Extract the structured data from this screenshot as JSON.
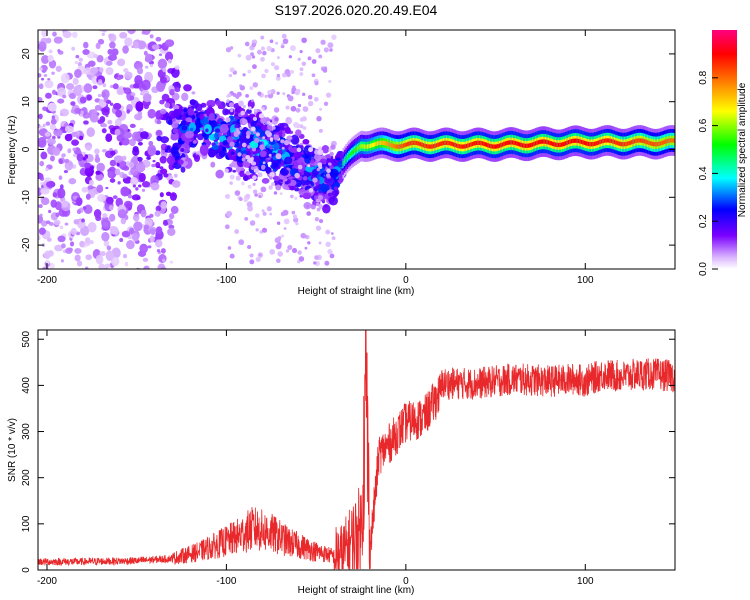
{
  "title": "S197.2026.020.20.49.E04",
  "chart_data": [
    {
      "type": "heatmap",
      "xlabel": "Height of straight line (km)",
      "ylabel": "Frequency (Hz)",
      "xlim": [
        -205,
        150
      ],
      "ylim": [
        -25,
        25
      ],
      "xticks": [
        -200,
        -100,
        0,
        100
      ],
      "yticks": [
        -20,
        -10,
        0,
        10,
        20
      ],
      "colorbar": {
        "label": "Normalized spectral amplitude",
        "ticks": [
          0.0,
          0.2,
          0.4,
          0.6,
          0.8
        ],
        "colors": [
          "#ffffff",
          "#d9b3ff",
          "#7a00ff",
          "#0000ff",
          "#00ffff",
          "#00ff00",
          "#ffff00",
          "#ff8000",
          "#ff0000",
          "#ff0080"
        ]
      },
      "description_points": [
        {
          "x": -200,
          "f_center": 0,
          "f_spread": 24,
          "amp": 0.12
        },
        {
          "x": -140,
          "f_center": 0,
          "f_spread": 24,
          "amp": 0.15
        },
        {
          "x": -120,
          "f_center": 5,
          "f_spread": 5,
          "amp": 0.3
        },
        {
          "x": -100,
          "f_center": 3,
          "f_spread": 6,
          "amp": 0.35
        },
        {
          "x": -80,
          "f_center": 1,
          "f_spread": 6,
          "amp": 0.35
        },
        {
          "x": -60,
          "f_center": -3,
          "f_spread": 6,
          "amp": 0.3
        },
        {
          "x": -40,
          "f_center": -7,
          "f_spread": 5,
          "amp": 0.3
        },
        {
          "x": -35,
          "f_center": -3,
          "f_spread": 2,
          "amp": 0.45
        },
        {
          "x": -25,
          "f_center": 1,
          "f_spread": 1,
          "amp": 0.6
        },
        {
          "x": 0,
          "f_center": 1,
          "f_spread": 1,
          "amp": 0.85
        },
        {
          "x": 50,
          "f_center": 1,
          "f_spread": 1,
          "amp": 0.9
        },
        {
          "x": 100,
          "f_center": 1.5,
          "f_spread": 1,
          "amp": 0.9
        },
        {
          "x": 150,
          "f_center": 1.5,
          "f_spread": 1,
          "amp": 0.8
        }
      ]
    },
    {
      "type": "line",
      "xlabel": "Height of straight line (km)",
      "ylabel": "SNR (10 * v/v)",
      "xlim": [
        -205,
        150
      ],
      "ylim": [
        0,
        520
      ],
      "xticks": [
        -200,
        -100,
        0,
        100
      ],
      "yticks": [
        0,
        100,
        200,
        300,
        400,
        500
      ],
      "color": "#e8282a",
      "series": [
        {
          "name": "SNR",
          "x": [
            -205,
            -180,
            -150,
            -130,
            -115,
            -105,
            -95,
            -85,
            -75,
            -65,
            -50,
            -40,
            -35,
            -25,
            -22,
            -20,
            -15,
            -10,
            0,
            10,
            20,
            40,
            60,
            80,
            95,
            100,
            110,
            120,
            130,
            140,
            150
          ],
          "y": [
            18,
            18,
            20,
            25,
            40,
            55,
            70,
            90,
            80,
            60,
            40,
            30,
            35,
            90,
            400,
            40,
            250,
            270,
            320,
            330,
            390,
            390,
            400,
            395,
            400,
            395,
            410,
            405,
            410,
            410,
            405
          ]
        }
      ]
    }
  ]
}
